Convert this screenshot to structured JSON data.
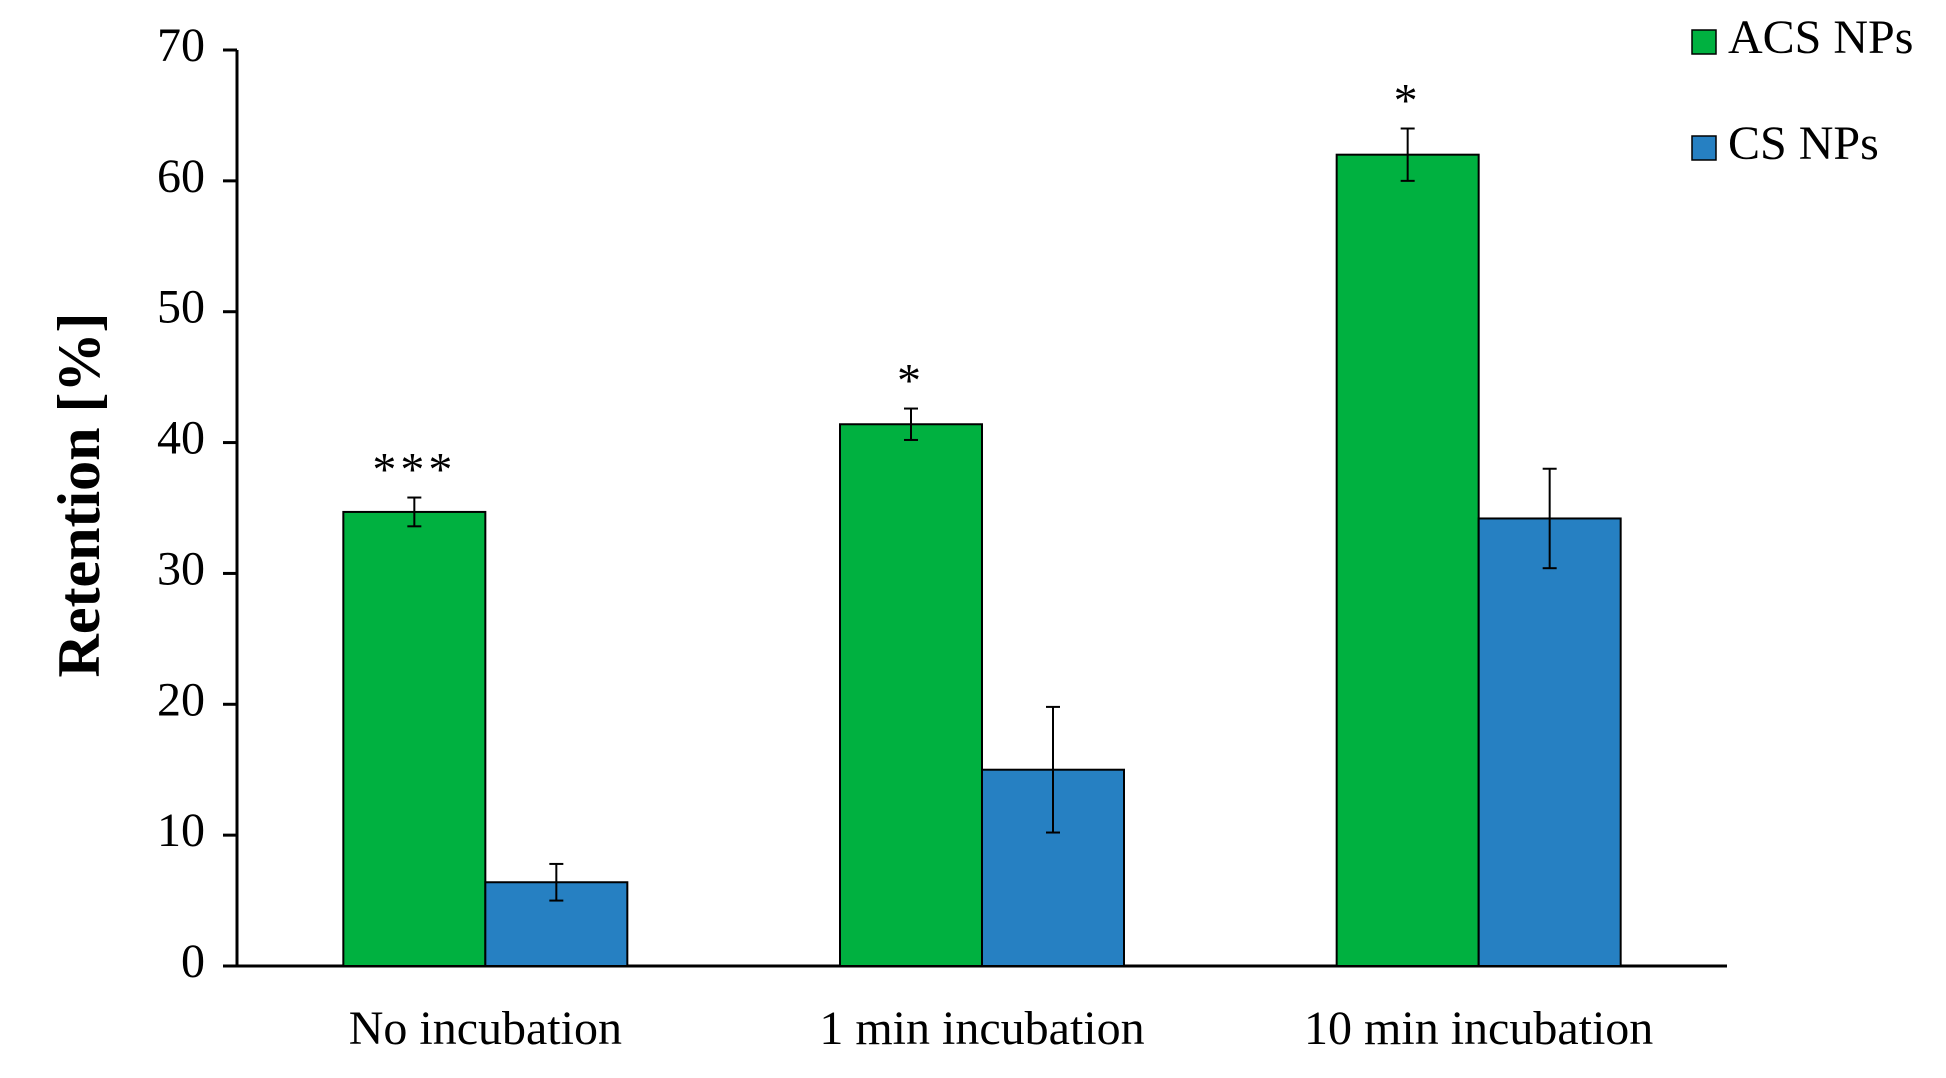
{
  "chart_data": {
    "type": "bar",
    "title": "",
    "xlabel": "",
    "ylabel": "Retention [%]",
    "ylim": [
      0,
      70
    ],
    "yticks": [
      0,
      10,
      20,
      30,
      40,
      50,
      60,
      70
    ],
    "ytick_labels": [
      "0",
      "10",
      "20",
      "30",
      "40",
      "50",
      "60",
      "70"
    ],
    "grid": false,
    "legend_position": "top-right",
    "categories": [
      "No incubation",
      "1 min incubation",
      "10 min incubation"
    ],
    "series": [
      {
        "name": "ACS NPs",
        "color": "#00b140",
        "values": [
          34.7,
          41.4,
          62.0
        ],
        "errors": [
          1.1,
          1.2,
          2.0
        ],
        "significance": [
          "***",
          "*",
          "*"
        ]
      },
      {
        "name": "CS NPs",
        "color": "#2680c2",
        "values": [
          6.4,
          15.0,
          34.2
        ],
        "errors": [
          1.4,
          4.8,
          3.8
        ],
        "significance": [
          "",
          "",
          ""
        ]
      }
    ]
  }
}
